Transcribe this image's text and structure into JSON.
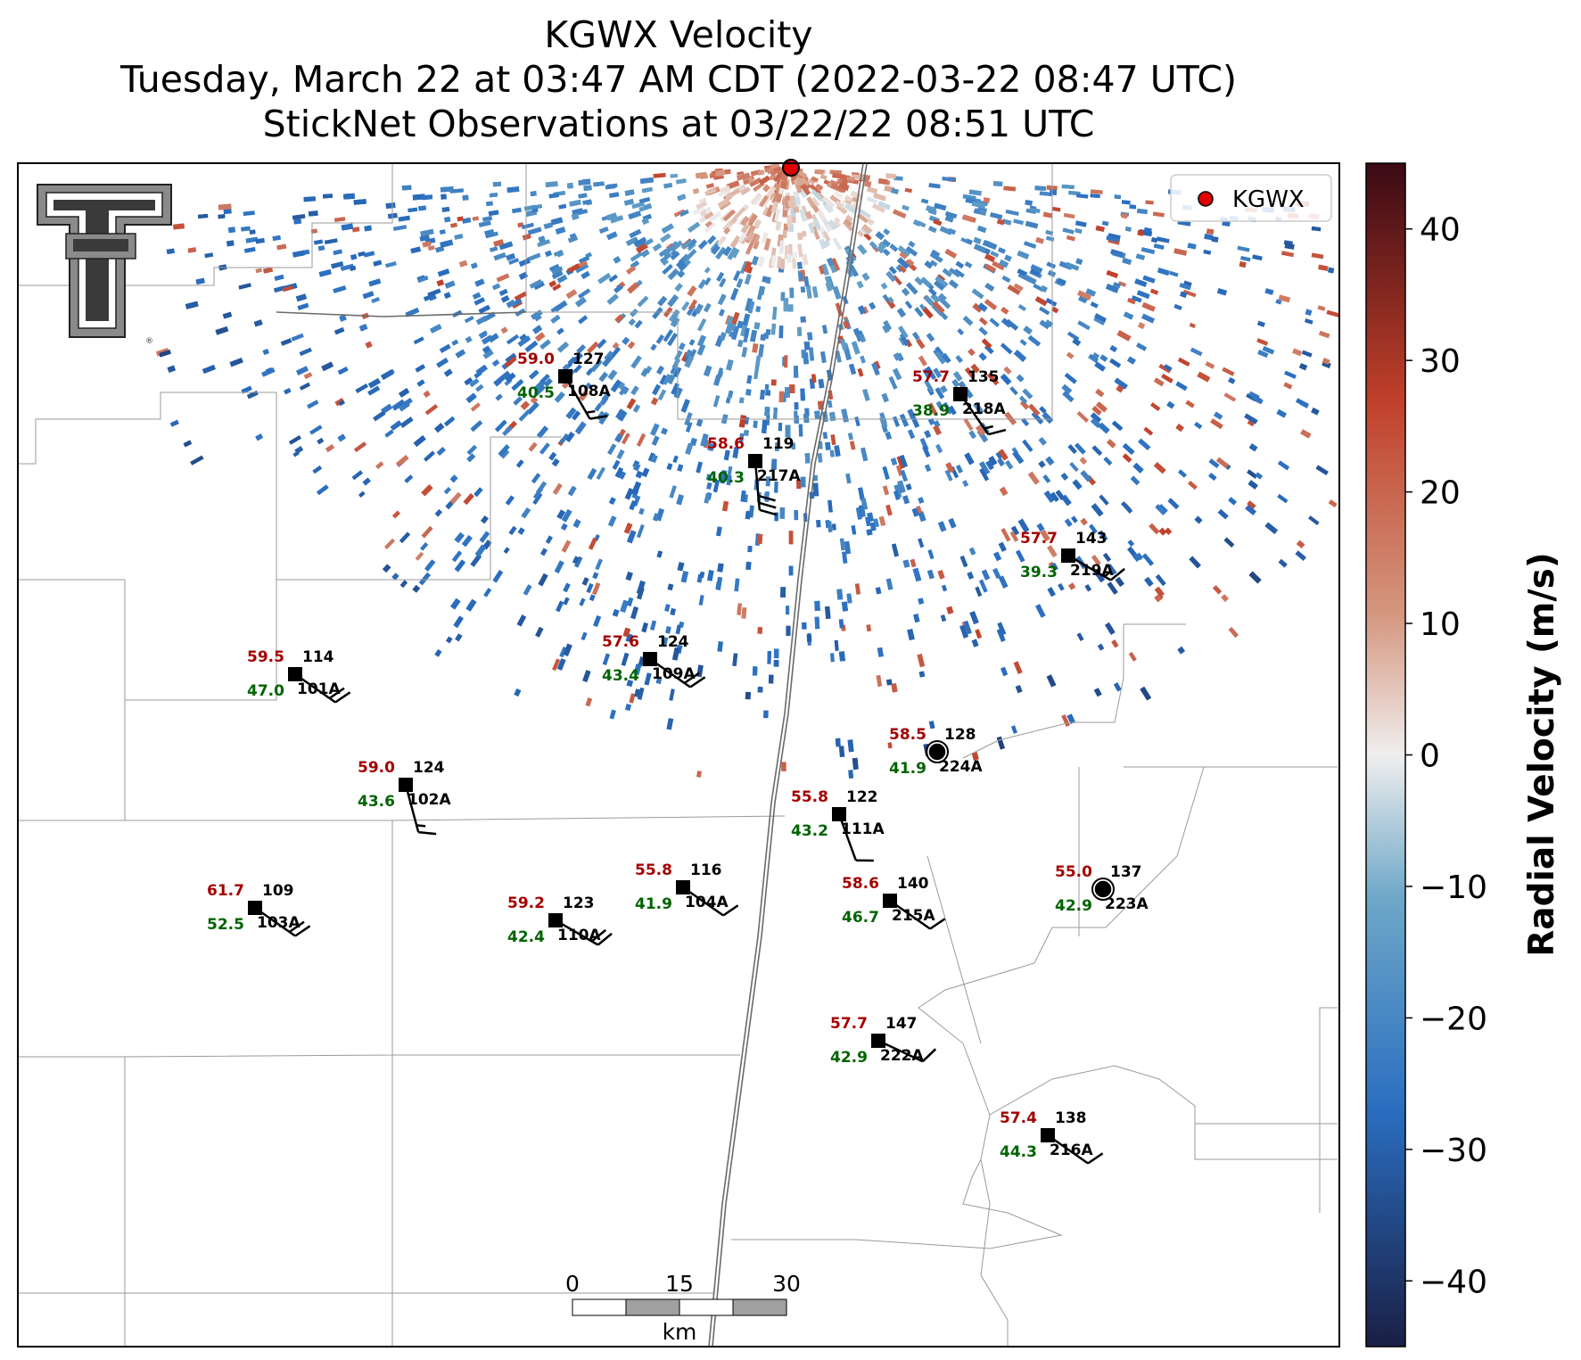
{
  "title": {
    "line1": "KGWX Velocity",
    "line2": "Tuesday, March 22 at 03:47 AM CDT (2022-03-22 08:47 UTC)",
    "line3": "StickNet Observations at 03/22/22 08:51 UTC"
  },
  "legend": {
    "label": "KGWX",
    "marker_color": "#e00000"
  },
  "colorbar": {
    "label": "Radial Velocity (m/s)",
    "ticks": [
      "40",
      "30",
      "20",
      "10",
      "0",
      "−10",
      "−20",
      "−30",
      "−40"
    ],
    "range": [
      -45,
      45
    ],
    "colors": {
      "min": "#1a1f45",
      "neg_mid": "#2a6ec0",
      "neg_low": "#6ea8c8",
      "zero": "#f0eeee",
      "pos_low": "#d4967e",
      "pos_mid": "#c0402a",
      "max": "#3a0a14"
    }
  },
  "scalebar": {
    "ticks": [
      "0",
      "15",
      "30"
    ],
    "unit": "km"
  },
  "logo": {
    "letter": "T"
  },
  "stations": [
    {
      "id": "108A",
      "temp": "59.0",
      "dew": "40.5",
      "pres": "127",
      "shape": "square"
    },
    {
      "id": "218A",
      "temp": "57.7",
      "dew": "38.9",
      "pres": "135",
      "shape": "square"
    },
    {
      "id": "217A",
      "temp": "58.6",
      "dew": "40.3",
      "pres": "119",
      "shape": "square"
    },
    {
      "id": "219A",
      "temp": "57.7",
      "dew": "39.3",
      "pres": "143",
      "shape": "square"
    },
    {
      "id": "101A",
      "temp": "59.5",
      "dew": "47.0",
      "pres": "114",
      "shape": "square"
    },
    {
      "id": "109A",
      "temp": "57.6",
      "dew": "43.4",
      "pres": "124",
      "shape": "square"
    },
    {
      "id": "224A",
      "temp": "58.5",
      "dew": "41.9",
      "pres": "128",
      "shape": "circle"
    },
    {
      "id": "102A",
      "temp": "59.0",
      "dew": "43.6",
      "pres": "124",
      "shape": "square"
    },
    {
      "id": "111A",
      "temp": "55.8",
      "dew": "43.2",
      "pres": "122",
      "shape": "square"
    },
    {
      "id": "103A",
      "temp": "61.7",
      "dew": "52.5",
      "pres": "109",
      "shape": "square"
    },
    {
      "id": "110A",
      "temp": "59.2",
      "dew": "42.4",
      "pres": "123",
      "shape": "square"
    },
    {
      "id": "104A",
      "temp": "55.8",
      "dew": "41.9",
      "pres": "116",
      "shape": "square"
    },
    {
      "id": "215A",
      "temp": "58.6",
      "dew": "46.7",
      "pres": "140",
      "shape": "square"
    },
    {
      "id": "223A",
      "temp": "55.0",
      "dew": "42.9",
      "pres": "137",
      "shape": "circle"
    },
    {
      "id": "222A",
      "temp": "57.7",
      "dew": "42.9",
      "pres": "147",
      "shape": "square"
    },
    {
      "id": "216A",
      "temp": "57.4",
      "dew": "44.3",
      "pres": "138",
      "shape": "square"
    }
  ]
}
